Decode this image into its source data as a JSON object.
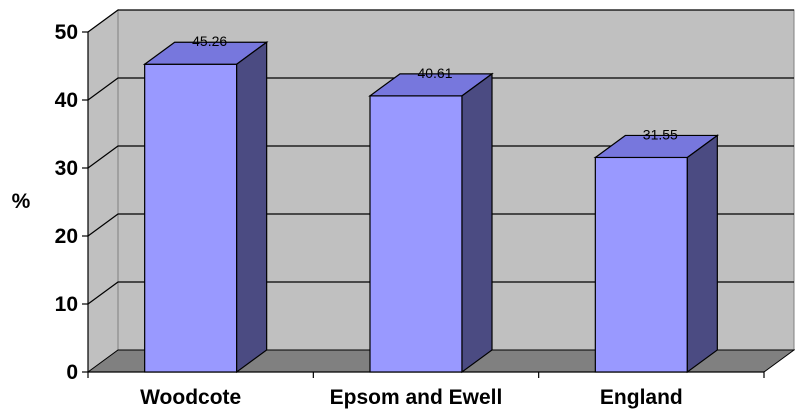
{
  "chart_data": {
    "type": "bar",
    "categories": [
      "Woodcote",
      "Epsom and Ewell",
      "England"
    ],
    "values": [
      45.26,
      40.61,
      31.55
    ],
    "data_labels": [
      "45.26",
      "40.61",
      "31.55"
    ],
    "ylabel": "%",
    "ylim": [
      0,
      50
    ],
    "yticks": [
      "0",
      "10",
      "20",
      "30",
      "40",
      "50"
    ],
    "grid": true,
    "style": "3d-column",
    "colors": {
      "bar_front": "#9999ff",
      "bar_top": "#7777dd",
      "bar_side": "#4b4b82",
      "wall": "#c0c0c0",
      "floor": "#808080"
    }
  }
}
